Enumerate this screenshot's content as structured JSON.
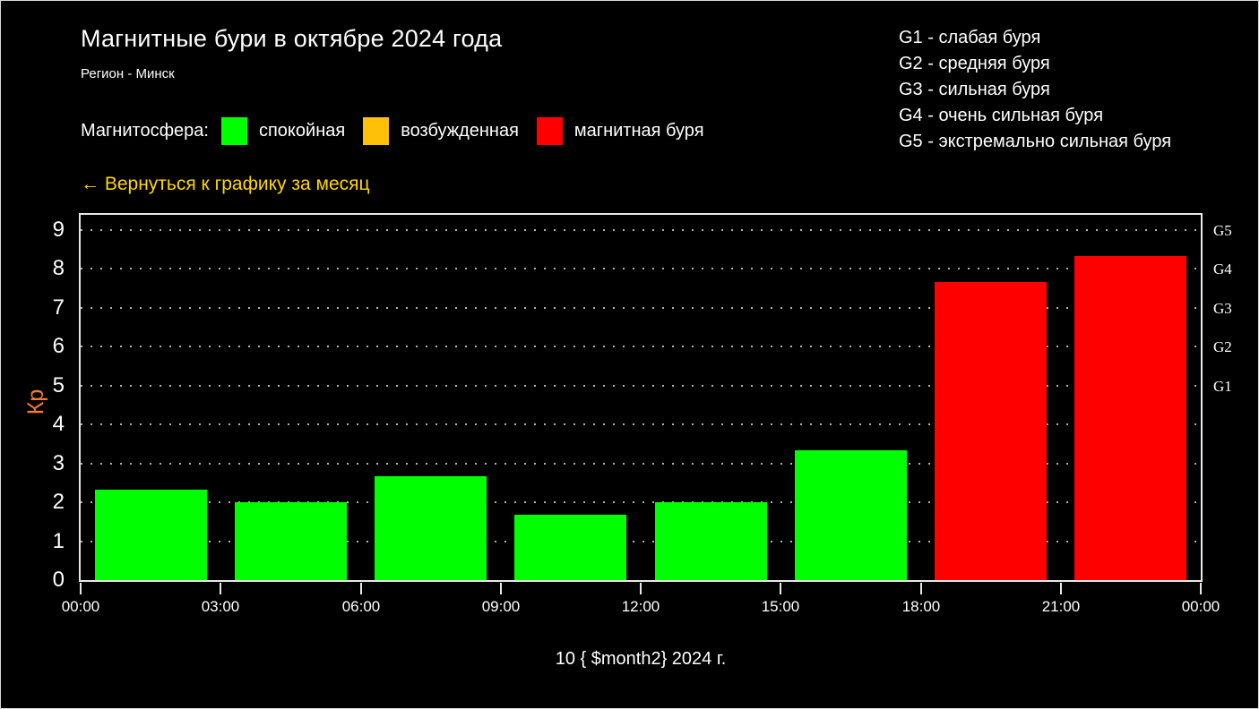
{
  "header": {
    "title": "Магнитные бури в октябре 2024 года",
    "subtitle": "Регион - Минск"
  },
  "storm_scale": {
    "items": [
      "G1 - слабая буря",
      "G2 - средняя буря",
      "G3 - сильная буря",
      "G4 - очень сильная буря",
      "G5 - экстремально сильная буря"
    ]
  },
  "legend": {
    "label": "Магнитосфера:",
    "items": [
      {
        "label": "спокойная",
        "color": "#00ff00"
      },
      {
        "label": "возбужденная",
        "color": "#ffc107"
      },
      {
        "label": "магнитная буря",
        "color": "#ff0000"
      }
    ]
  },
  "back_link": {
    "text": "← Вернуться к графику за месяц",
    "color": "#ffd700"
  },
  "chart_data": {
    "type": "bar",
    "title": "Магнитные бури в октябре 2024 года",
    "xlabel": "10 { $month2} 2024 г.",
    "ylabel": "Кр",
    "ylabel_color": "#ed7d31",
    "ylim": [
      0,
      9.39
    ],
    "grid": "horizontal dotted",
    "x_ticks": [
      "00:00",
      "03:00",
      "06:00",
      "09:00",
      "12:00",
      "15:00",
      "18:00",
      "21:00",
      "00:00"
    ],
    "y_ticks": [
      0,
      1,
      2,
      3,
      4,
      5,
      6,
      7,
      8,
      9
    ],
    "right_axis_labels": [
      {
        "label": "G1",
        "kp": 5
      },
      {
        "label": "G2",
        "kp": 6
      },
      {
        "label": "G3",
        "kp": 7
      },
      {
        "label": "G4",
        "kp": 8
      },
      {
        "label": "G5",
        "kp": 9
      }
    ],
    "bars": [
      {
        "time": "00:00-03:00",
        "kp": 2.33,
        "state": "спокойная",
        "color": "#00ff00"
      },
      {
        "time": "03:00-06:00",
        "kp": 2.0,
        "state": "спокойная",
        "color": "#00ff00"
      },
      {
        "time": "06:00-09:00",
        "kp": 2.67,
        "state": "спокойная",
        "color": "#00ff00"
      },
      {
        "time": "09:00-12:00",
        "kp": 1.67,
        "state": "спокойная",
        "color": "#00ff00"
      },
      {
        "time": "12:00-15:00",
        "kp": 2.0,
        "state": "спокойная",
        "color": "#00ff00"
      },
      {
        "time": "15:00-18:00",
        "kp": 3.33,
        "state": "спокойная",
        "color": "#00ff00"
      },
      {
        "time": "18:00-21:00",
        "kp": 7.67,
        "state": "магнитная буря",
        "color": "#ff0000"
      },
      {
        "time": "21:00-00:00",
        "kp": 8.33,
        "state": "магнитная буря",
        "color": "#ff0000"
      }
    ]
  }
}
